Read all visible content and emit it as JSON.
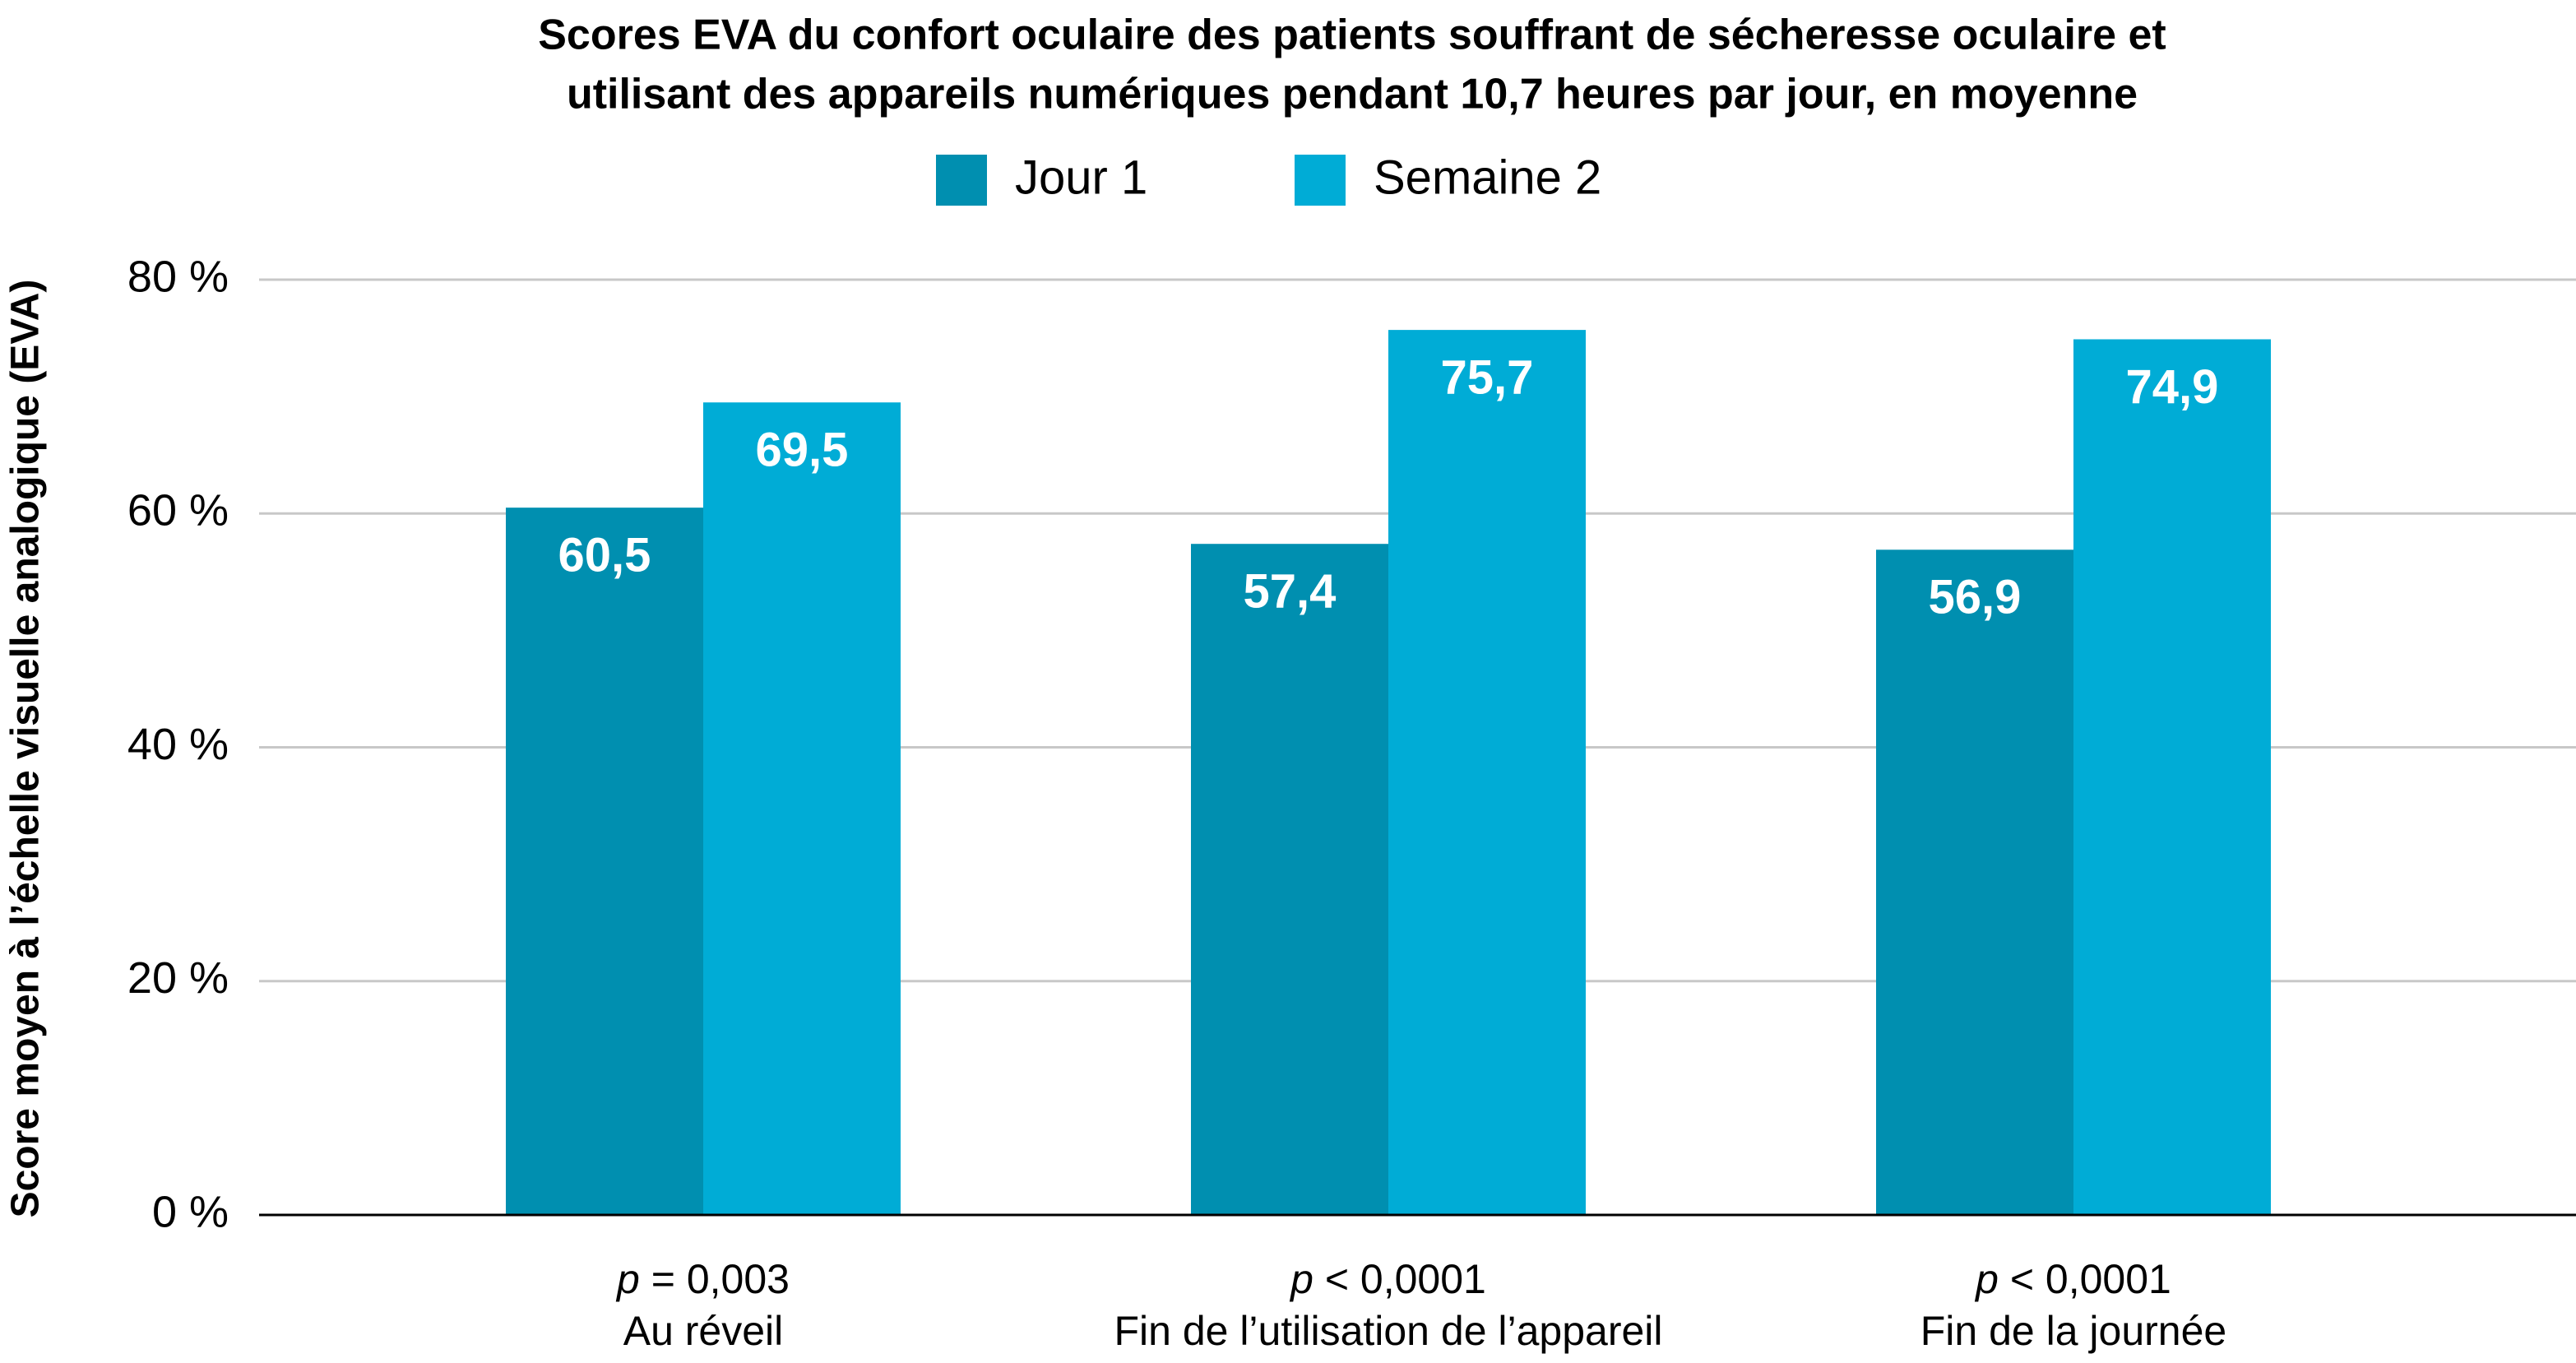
{
  "chart_data": {
    "type": "bar",
    "title_lines": [
      "Scores EVA du confort oculaire des patients souffrant de sécheresse oculaire et",
      "utilisant des appareils numériques pendant 10,7 heures par jour, en moyenne"
    ],
    "ylabel": "Score moyen à l’échelle visuelle analogique (EVA)",
    "xlabel": "",
    "ylim": [
      0,
      80
    ],
    "yticks": [
      {
        "value": 0,
        "label": "0 %"
      },
      {
        "value": 20,
        "label": "20 %"
      },
      {
        "value": 40,
        "label": "40 %"
      },
      {
        "value": 60,
        "label": "60 %"
      },
      {
        "value": 80,
        "label": "80 %"
      }
    ],
    "grid": true,
    "legend_position": "top-center",
    "categories": [
      "Au réveil",
      "Fin de l’utilisation de l’appareil",
      "Fin de la journée"
    ],
    "p_values": [
      {
        "symbol": "p",
        "text": " = 0,003"
      },
      {
        "symbol": "p",
        "text": " < 0,0001"
      },
      {
        "symbol": "p",
        "text": " < 0,0001"
      }
    ],
    "series": [
      {
        "name": "Jour 1",
        "color": "#008fb0",
        "values": [
          60.5,
          57.4,
          56.9
        ],
        "labels": [
          "60,5",
          "57,4",
          "56,9"
        ]
      },
      {
        "name": "Semaine 2",
        "color": "#00acd6",
        "values": [
          69.5,
          75.7,
          74.9
        ],
        "labels": [
          "69,5",
          "75,7",
          "74,9"
        ]
      }
    ]
  }
}
